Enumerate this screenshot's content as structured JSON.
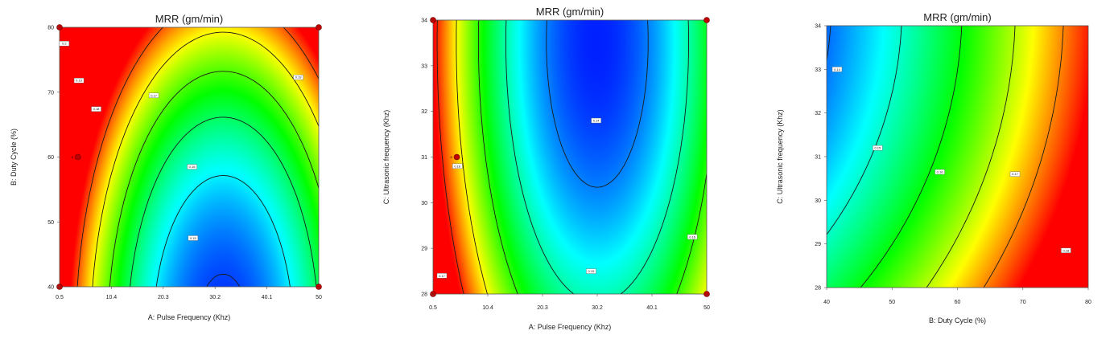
{
  "chart_data": [
    {
      "type": "heatmap",
      "title": "MRR (gm/min)",
      "xlabel": "A: Pulse Frequency (Khz)",
      "ylabel": "B: Duty Cycle (%)",
      "xlim": [
        0.5,
        50
      ],
      "ylim": [
        40,
        80
      ],
      "x_ticks": [
        "0.5",
        "10.4",
        "20.3",
        "30.2",
        "40.1",
        "50"
      ],
      "y_ticks": [
        "40",
        "50",
        "60",
        "70",
        "80"
      ],
      "contour_levels": [
        0.15,
        0.16,
        0.17,
        0.18,
        0.19,
        0.2
      ],
      "contour_labels": [
        {
          "text": "0.15",
          "x": 26.0,
          "y": 47.5
        },
        {
          "text": "0.16",
          "x": 25.8,
          "y": 58.5
        },
        {
          "text": "0.17",
          "x": 18.5,
          "y": 69.5
        },
        {
          "text": "0.18",
          "x": 7.5,
          "y": 67.4
        },
        {
          "text": "0.19",
          "x": 4.2,
          "y": 71.8
        },
        {
          "text": "0.2",
          "x": 1.4,
          "y": 77.5
        },
        {
          "text": "0.19",
          "x": 46.1,
          "y": 72.3
        }
      ],
      "design_points": [
        {
          "x": 0.5,
          "y": 80
        },
        {
          "x": 50,
          "y": 80
        },
        {
          "x": 0.5,
          "y": 40
        },
        {
          "x": 50,
          "y": 40
        },
        {
          "x": 4.0,
          "y": 60,
          "label": "6"
        }
      ]
    },
    {
      "type": "heatmap",
      "title": "MRR (gm/min)",
      "xlabel": "A: Pulse Frequency (Khz)",
      "ylabel": "C: Ultrasonic frequency (Khz)",
      "xlim": [
        0.5,
        50
      ],
      "ylim": [
        28,
        34
      ],
      "x_ticks": [
        "0.5",
        "10.4",
        "20.3",
        "30.2",
        "40.1",
        "50"
      ],
      "y_ticks": [
        "28",
        "29",
        "30",
        "31",
        "32",
        "33",
        "34"
      ],
      "contour_levels": [
        0.14,
        0.15,
        0.16,
        0.17,
        0.18
      ],
      "contour_labels": [
        {
          "text": "0.16",
          "x": 4.9,
          "y": 30.8
        },
        {
          "text": "0.14",
          "x": 30.0,
          "y": 31.8
        },
        {
          "text": "0.15",
          "x": 29.1,
          "y": 28.5
        },
        {
          "text": "0.16",
          "x": 47.4,
          "y": 29.25
        },
        {
          "text": "0.17",
          "x": 2.1,
          "y": 28.4
        }
      ],
      "design_points": [
        {
          "x": 0.5,
          "y": 34
        },
        {
          "x": 50,
          "y": 34
        },
        {
          "x": 0.5,
          "y": 28
        },
        {
          "x": 50,
          "y": 28
        },
        {
          "x": 4.8,
          "y": 31,
          "label": "6"
        }
      ]
    },
    {
      "type": "heatmap",
      "title": "MRR (gm/min)",
      "xlabel": "B: Duty Cycle (%)",
      "ylabel": "C: Ultrasonic frequency (Khz)",
      "xlim": [
        40,
        80
      ],
      "ylim": [
        28,
        34
      ],
      "x_ticks": [
        "40",
        "50",
        "60",
        "70",
        "80"
      ],
      "y_ticks": [
        "28",
        "29",
        "30",
        "31",
        "32",
        "33",
        "34"
      ],
      "contour_levels": [
        0.14,
        0.15,
        0.16,
        0.17,
        0.18
      ],
      "contour_labels": [
        {
          "text": "0.14",
          "x": 41.6,
          "y": 33.0
        },
        {
          "text": "0.15",
          "x": 47.8,
          "y": 31.2
        },
        {
          "text": "0.16",
          "x": 57.3,
          "y": 30.65
        },
        {
          "text": "0.17",
          "x": 68.8,
          "y": 30.6
        },
        {
          "text": "0.18",
          "x": 76.6,
          "y": 28.85
        }
      ],
      "design_points": []
    }
  ]
}
